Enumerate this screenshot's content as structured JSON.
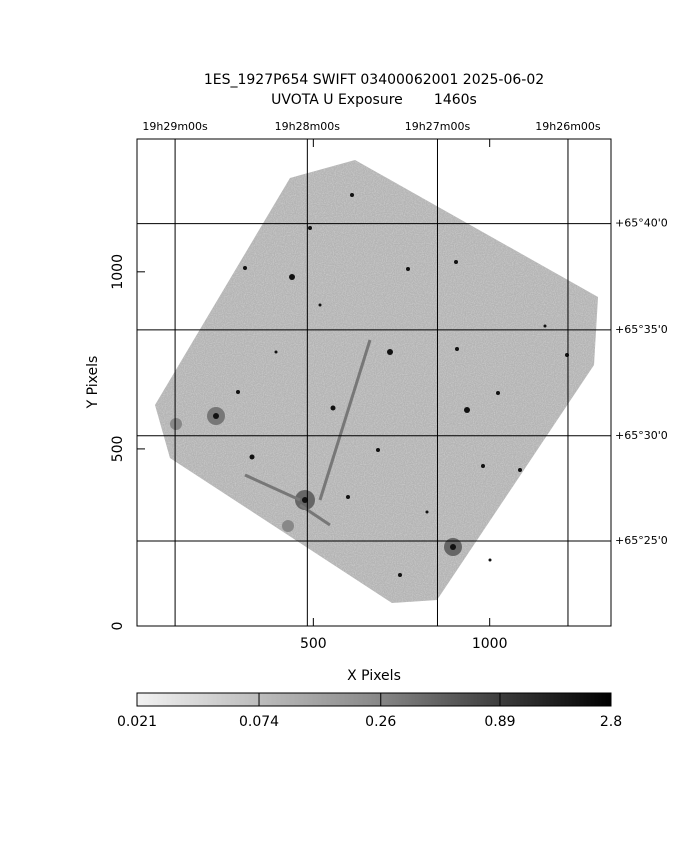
{
  "chart_data": {
    "type": "image",
    "title": "1ES_1927P654 SWIFT 03400062001 2025-06-02",
    "subtitle": "UVOTA U Exposure       1460s",
    "x_label": "X Pixels",
    "y_label": "Y Pixels",
    "xlim": [
      0,
      1344
    ],
    "ylim": [
      0,
      1375
    ],
    "xticks": [
      500,
      1000
    ],
    "yticks": [
      0,
      500,
      1000
    ],
    "ra_ticks": [
      {
        "value": 108,
        "label": "19h29m00s"
      },
      {
        "value": 483,
        "label": "19h28m00s"
      },
      {
        "value": 852,
        "label": "19h27m00s"
      },
      {
        "value": 1222,
        "label": "19h26m00s"
      }
    ],
    "dec_ticks": [
      {
        "value": 1136,
        "label": "+65°40'0"
      },
      {
        "value": 836,
        "label": "+65°35'0"
      },
      {
        "value": 537,
        "label": "+65°30'0"
      },
      {
        "value": 240,
        "label": "+65°25'0"
      }
    ],
    "colorbar": {
      "scale": "log",
      "lim": [
        0.021,
        2.8
      ],
      "ticks": [
        0.021,
        0.074,
        0.26,
        0.89,
        2.8
      ]
    }
  }
}
